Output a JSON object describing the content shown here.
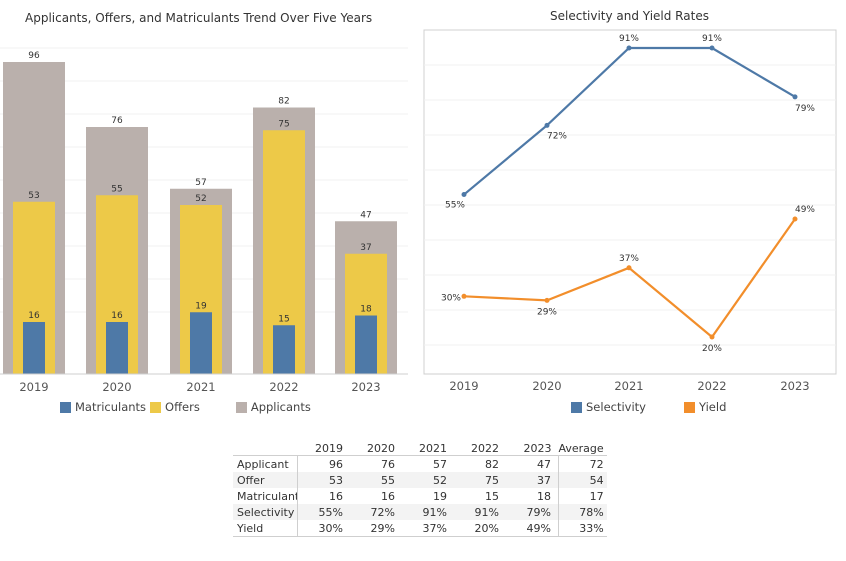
{
  "chart_data": [
    {
      "type": "bar",
      "title": "Applicants, Offers, and Matriculants Trend Over Five Years",
      "categories": [
        "2019",
        "2020",
        "2021",
        "2022",
        "2023"
      ],
      "series": [
        {
          "name": "Applicants",
          "values": [
            96,
            76,
            57,
            82,
            47
          ],
          "color": "#bab0ac"
        },
        {
          "name": "Offers",
          "values": [
            53,
            55,
            52,
            75,
            37
          ],
          "color": "#edc948"
        },
        {
          "name": "Matriculants",
          "values": [
            16,
            16,
            19,
            15,
            18
          ],
          "color": "#4e79a7"
        }
      ],
      "ylim": [
        0,
        96
      ],
      "legend": [
        "Matriculants",
        "Offers",
        "Applicants"
      ]
    },
    {
      "type": "line",
      "title": "Selectivity and Yield Rates",
      "categories": [
        "2019",
        "2020",
        "2021",
        "2022",
        "2023"
      ],
      "series": [
        {
          "name": "Selectivity",
          "values": [
            55,
            72,
            91,
            91,
            79
          ],
          "labels": [
            "55%",
            "72%",
            "91%",
            "91%",
            "79%"
          ],
          "color": "#4e79a7"
        },
        {
          "name": "Yield",
          "values": [
            30,
            29,
            37,
            20,
            49
          ],
          "labels": [
            "30%",
            "29%",
            "37%",
            "20%",
            "49%"
          ],
          "color": "#f28e2b"
        }
      ],
      "ylim": [
        10,
        100
      ],
      "legend": [
        "Selectivity",
        "Yield"
      ]
    }
  ],
  "table": {
    "headers": [
      "2019",
      "2020",
      "2021",
      "2022",
      "2023",
      "Average"
    ],
    "rows": [
      {
        "label": "Applicant",
        "values": [
          "96",
          "76",
          "57",
          "82",
          "47"
        ],
        "average": "72"
      },
      {
        "label": "Offer",
        "values": [
          "53",
          "55",
          "52",
          "75",
          "37"
        ],
        "average": "54"
      },
      {
        "label": "Matriculant",
        "values": [
          "16",
          "16",
          "19",
          "15",
          "18"
        ],
        "average": "17"
      },
      {
        "label": "Selectivity",
        "values": [
          "55%",
          "72%",
          "91%",
          "91%",
          "79%"
        ],
        "average": "78%"
      },
      {
        "label": "Yield",
        "values": [
          "30%",
          "29%",
          "37%",
          "20%",
          "49%"
        ],
        "average": "33%"
      }
    ]
  }
}
